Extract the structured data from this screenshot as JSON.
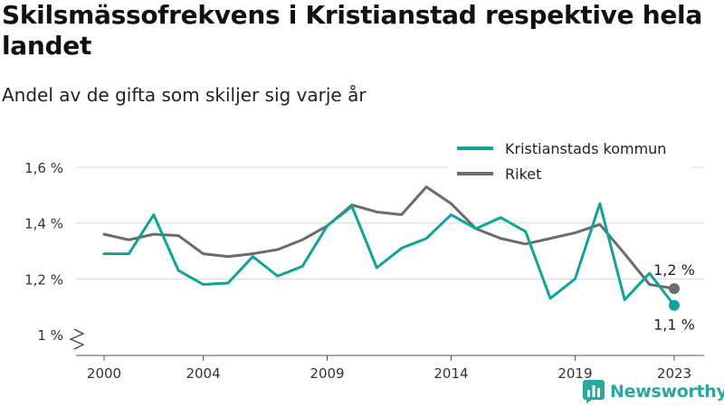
{
  "title": "Skilsmässofrekvens i Kristianstad respektive hela landet",
  "subtitle": "Andel av de gifta som skiljer sig varje år",
  "brand": {
    "name": "Newsworthy",
    "icon": "bar-chart-icon",
    "color": "#2aa8a0"
  },
  "chart_data": {
    "type": "line",
    "x": [
      2000,
      2001,
      2002,
      2003,
      2004,
      2005,
      2006,
      2007,
      2008,
      2009,
      2010,
      2011,
      2012,
      2013,
      2014,
      2015,
      2016,
      2017,
      2018,
      2019,
      2020,
      2021,
      2022,
      2023
    ],
    "x_ticks": [
      2000,
      2004,
      2009,
      2014,
      2019,
      2023
    ],
    "y_ticks": [
      1.0,
      1.2,
      1.4,
      1.6
    ],
    "y_tick_labels": [
      "1 %",
      "1,2 %",
      "1,4 %",
      "1,6 %"
    ],
    "ylim": [
      1.0,
      1.6
    ],
    "grid": true,
    "axis_break": true,
    "legend_position": "top-right",
    "series": [
      {
        "name": "Kristianstads kommun",
        "color": "#0fa39a",
        "values": [
          1.29,
          1.29,
          1.43,
          1.23,
          1.18,
          1.185,
          1.28,
          1.21,
          1.245,
          1.39,
          1.46,
          1.24,
          1.31,
          1.345,
          1.43,
          1.38,
          1.42,
          1.37,
          1.13,
          1.2,
          1.47,
          1.125,
          1.22,
          1.105
        ],
        "end_label": "1,1 %"
      },
      {
        "name": "Riket",
        "color": "#6b6b6b",
        "values": [
          1.36,
          1.34,
          1.36,
          1.355,
          1.29,
          1.28,
          1.29,
          1.305,
          1.34,
          1.39,
          1.465,
          1.44,
          1.43,
          1.53,
          1.47,
          1.38,
          1.345,
          1.325,
          1.345,
          1.365,
          1.395,
          1.29,
          1.18,
          1.165
        ],
        "end_label": "1,2 %"
      }
    ]
  }
}
